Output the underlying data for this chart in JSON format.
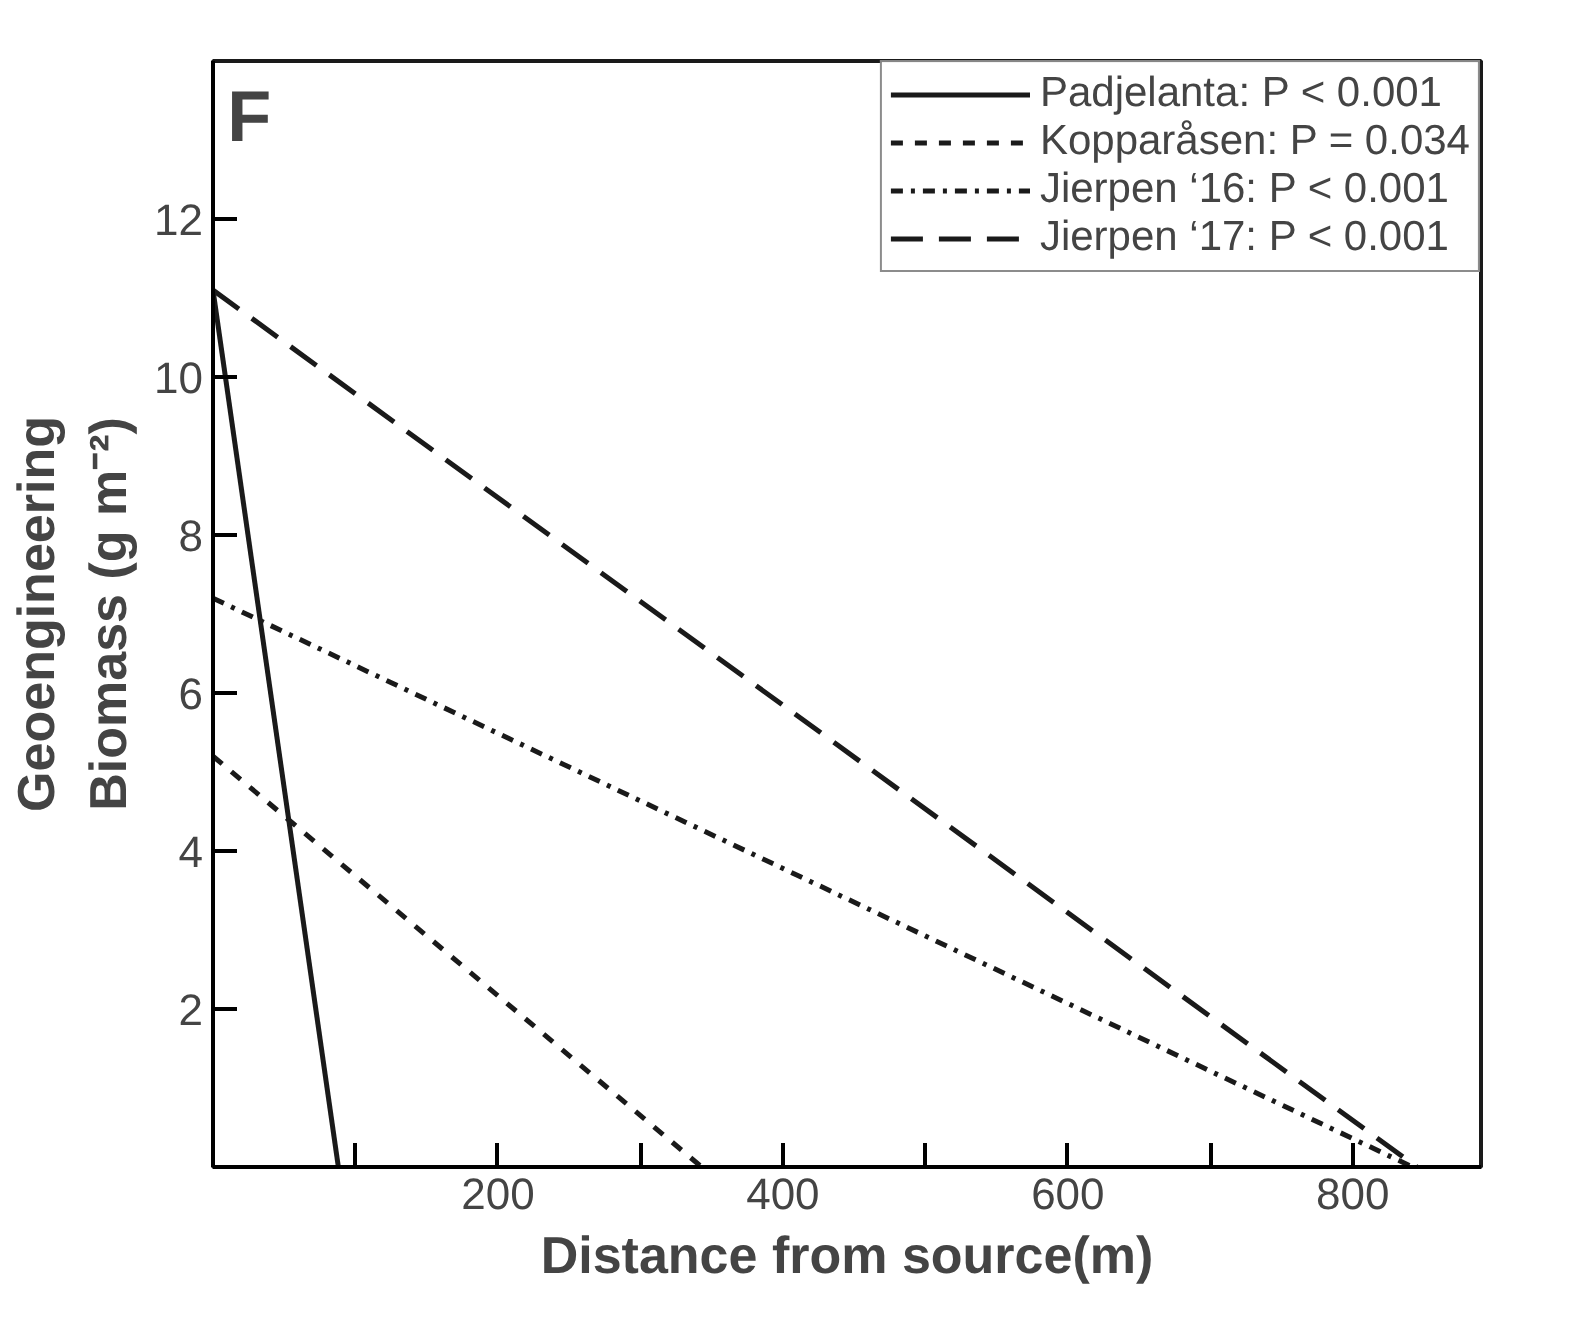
{
  "chart_data": {
    "type": "line",
    "xlabel": "Distance from source(m)",
    "ylabel": "Geoengineering\nBiomass (g m⁻²)",
    "annotations": [
      "F"
    ],
    "xlim": [
      0,
      890
    ],
    "ylim": [
      0,
      14
    ],
    "xticks": [
      {
        "value": 100,
        "label": null
      },
      200,
      {
        "value": 300,
        "label": null
      },
      400,
      {
        "value": 500,
        "label": null
      },
      600,
      {
        "value": 700,
        "label": null
      },
      800
    ],
    "yticks": [
      2,
      4,
      6,
      8,
      10,
      12
    ],
    "grid": false,
    "legend": "top right",
    "marker": "none",
    "series": [
      {
        "name": "Padjelanta: P < 0.001",
        "color": "#1a1a1a",
        "line_style": "solid",
        "x": [
          0,
          88
        ],
        "values": [
          11.1,
          0
        ]
      },
      {
        "name": "Kopparåsen: P = 0.034",
        "color": "#1a1a1a",
        "line_style": "dashed",
        "x": [
          0,
          343
        ],
        "values": [
          5.2,
          0
        ]
      },
      {
        "name": "Jierpen ‘16: P < 0.001",
        "color": "#1a1a1a",
        "line_style": "dashdot",
        "x": [
          0,
          842
        ],
        "values": [
          7.2,
          0
        ]
      },
      {
        "name": "Jierpen ‘17: P < 0.001",
        "color": "#1a1a1a",
        "line_style": "longdash",
        "x": [
          0,
          845
        ],
        "values": [
          11.1,
          0
        ]
      }
    ]
  }
}
